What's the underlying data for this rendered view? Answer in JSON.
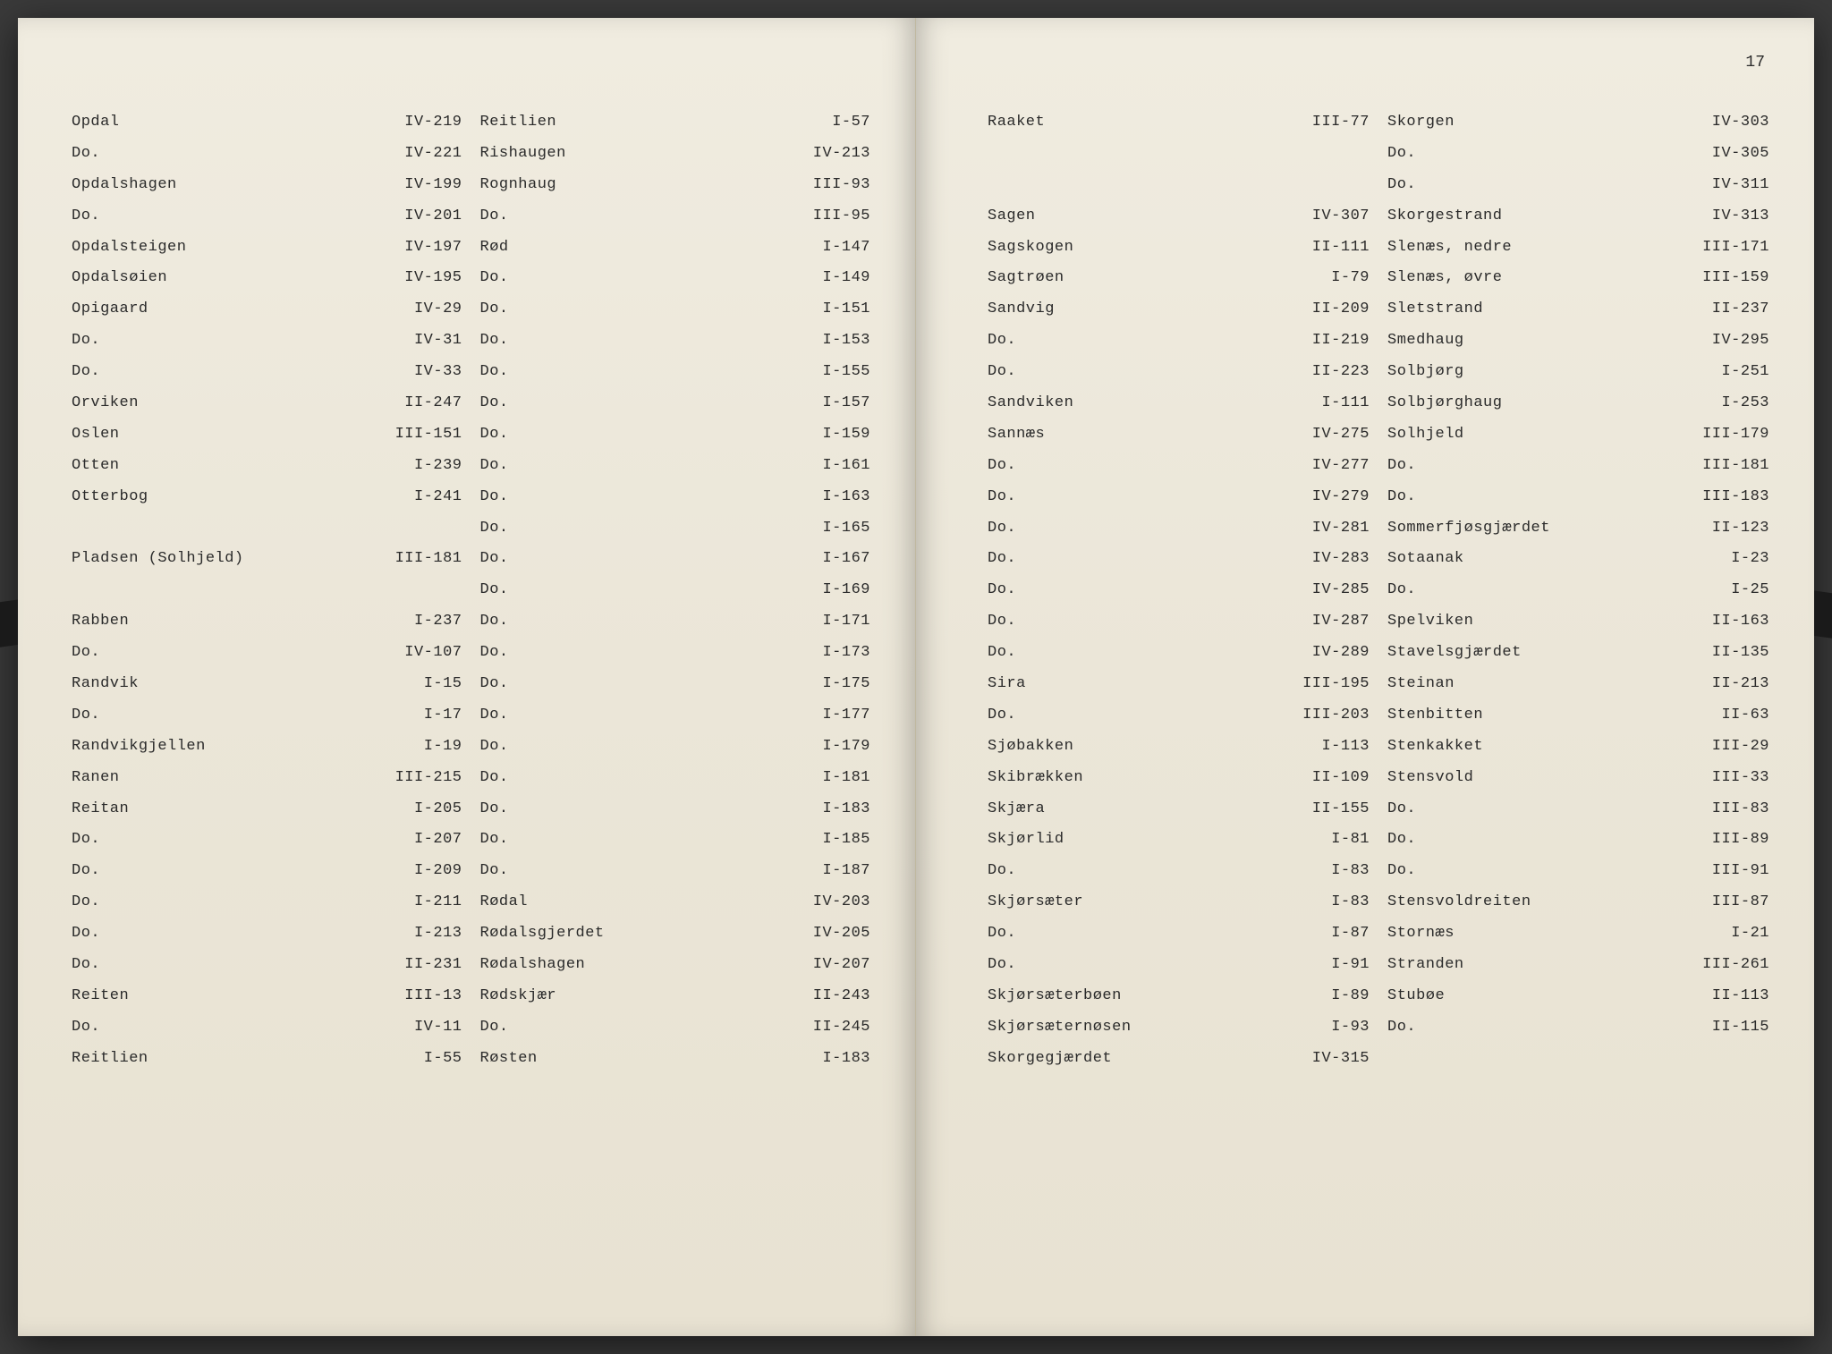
{
  "page_number": "17",
  "left_page": {
    "col1": [
      {
        "name": "Opdal",
        "ref": "IV-219"
      },
      {
        "name": "Do.",
        "ref": "IV-221"
      },
      {
        "name": "Opdalshagen",
        "ref": "IV-199"
      },
      {
        "name": "Do.",
        "ref": "IV-201"
      },
      {
        "name": "Opdalsteigen",
        "ref": "IV-197"
      },
      {
        "name": "Opdalsøien",
        "ref": "IV-195"
      },
      {
        "name": "Opigaard",
        "ref": "IV-29"
      },
      {
        "name": "Do.",
        "ref": "IV-31"
      },
      {
        "name": "Do.",
        "ref": "IV-33"
      },
      {
        "name": "Orviken",
        "ref": "II-247"
      },
      {
        "name": "Oslen",
        "ref": "III-151"
      },
      {
        "name": "Otten",
        "ref": "I-239"
      },
      {
        "name": "Otterbog",
        "ref": "I-241"
      },
      {
        "name": "",
        "ref": ""
      },
      {
        "name": "Pladsen (Solhjeld)",
        "ref": "III-181"
      },
      {
        "name": "",
        "ref": ""
      },
      {
        "name": "Rabben",
        "ref": "I-237"
      },
      {
        "name": "Do.",
        "ref": "IV-107"
      },
      {
        "name": "Randvik",
        "ref": "I-15"
      },
      {
        "name": "Do.",
        "ref": "I-17"
      },
      {
        "name": "Randvikgjellen",
        "ref": "I-19"
      },
      {
        "name": "Ranen",
        "ref": "III-215"
      },
      {
        "name": "Reitan",
        "ref": "I-205"
      },
      {
        "name": "Do.",
        "ref": "I-207"
      },
      {
        "name": "Do.",
        "ref": "I-209"
      },
      {
        "name": "Do.",
        "ref": "I-211"
      },
      {
        "name": "Do.",
        "ref": "I-213"
      },
      {
        "name": "Do.",
        "ref": "II-231"
      },
      {
        "name": "Reiten",
        "ref": "III-13"
      },
      {
        "name": "Do.",
        "ref": "IV-11"
      },
      {
        "name": "Reitlien",
        "ref": "I-55"
      }
    ],
    "col2": [
      {
        "name": "Reitlien",
        "ref": "I-57"
      },
      {
        "name": "Rishaugen",
        "ref": "IV-213"
      },
      {
        "name": "Rognhaug",
        "ref": "III-93"
      },
      {
        "name": "Do.",
        "ref": "III-95"
      },
      {
        "name": "Rød",
        "ref": "I-147"
      },
      {
        "name": "Do.",
        "ref": "I-149"
      },
      {
        "name": "Do.",
        "ref": "I-151"
      },
      {
        "name": "Do.",
        "ref": "I-153"
      },
      {
        "name": "Do.",
        "ref": "I-155"
      },
      {
        "name": "Do.",
        "ref": "I-157"
      },
      {
        "name": "Do.",
        "ref": "I-159"
      },
      {
        "name": "Do.",
        "ref": "I-161"
      },
      {
        "name": "Do.",
        "ref": "I-163"
      },
      {
        "name": "Do.",
        "ref": "I-165"
      },
      {
        "name": "Do.",
        "ref": "I-167"
      },
      {
        "name": "Do.",
        "ref": "I-169"
      },
      {
        "name": "Do.",
        "ref": "I-171"
      },
      {
        "name": "Do.",
        "ref": "I-173"
      },
      {
        "name": "Do.",
        "ref": "I-175"
      },
      {
        "name": "Do.",
        "ref": "I-177"
      },
      {
        "name": "Do.",
        "ref": "I-179"
      },
      {
        "name": "Do.",
        "ref": "I-181"
      },
      {
        "name": "Do.",
        "ref": "I-183"
      },
      {
        "name": "Do.",
        "ref": "I-185"
      },
      {
        "name": "Do.",
        "ref": "I-187"
      },
      {
        "name": "Rødal",
        "ref": "IV-203"
      },
      {
        "name": "Rødalsgjerdet",
        "ref": "IV-205"
      },
      {
        "name": "Rødalshagen",
        "ref": "IV-207"
      },
      {
        "name": "Rødskjær",
        "ref": "II-243"
      },
      {
        "name": "Do.",
        "ref": "II-245"
      },
      {
        "name": "Røsten",
        "ref": "I-183"
      }
    ]
  },
  "right_page": {
    "col1": [
      {
        "name": "Raaket",
        "ref": "III-77"
      },
      {
        "name": "",
        "ref": ""
      },
      {
        "name": "",
        "ref": ""
      },
      {
        "name": "Sagen",
        "ref": "IV-307"
      },
      {
        "name": "Sagskogen",
        "ref": "II-111"
      },
      {
        "name": "Sagtrøen",
        "ref": "I-79"
      },
      {
        "name": "Sandvig",
        "ref": "II-209"
      },
      {
        "name": "Do.",
        "ref": "II-219"
      },
      {
        "name": "Do.",
        "ref": "II-223"
      },
      {
        "name": "Sandviken",
        "ref": "I-111"
      },
      {
        "name": "Sannæs",
        "ref": "IV-275"
      },
      {
        "name": "Do.",
        "ref": "IV-277"
      },
      {
        "name": "Do.",
        "ref": "IV-279"
      },
      {
        "name": "Do.",
        "ref": "IV-281"
      },
      {
        "name": "Do.",
        "ref": "IV-283"
      },
      {
        "name": "Do.",
        "ref": "IV-285"
      },
      {
        "name": "Do.",
        "ref": "IV-287"
      },
      {
        "name": "Do.",
        "ref": "IV-289"
      },
      {
        "name": "Sira",
        "ref": "III-195"
      },
      {
        "name": "Do.",
        "ref": "III-203"
      },
      {
        "name": "Sjøbakken",
        "ref": "I-113"
      },
      {
        "name": "Skibrækken",
        "ref": "II-109"
      },
      {
        "name": "Skjæra",
        "ref": "II-155"
      },
      {
        "name": "Skjørlid",
        "ref": "I-81"
      },
      {
        "name": "Do.",
        "ref": "I-83"
      },
      {
        "name": "Skjørsæter",
        "ref": "I-83"
      },
      {
        "name": "Do.",
        "ref": "I-87"
      },
      {
        "name": "Do.",
        "ref": "I-91"
      },
      {
        "name": "Skjørsæterbøen",
        "ref": "I-89"
      },
      {
        "name": "Skjørsæternøsen",
        "ref": "I-93"
      },
      {
        "name": "Skorgegjærdet",
        "ref": "IV-315"
      }
    ],
    "col2": [
      {
        "name": "Skorgen",
        "ref": "IV-303"
      },
      {
        "name": "Do.",
        "ref": "IV-305"
      },
      {
        "name": "Do.",
        "ref": "IV-311"
      },
      {
        "name": "Skorgestrand",
        "ref": "IV-313"
      },
      {
        "name": "Slenæs, nedre",
        "ref": "III-171"
      },
      {
        "name": "Slenæs, øvre",
        "ref": "III-159"
      },
      {
        "name": "Sletstrand",
        "ref": "II-237"
      },
      {
        "name": "Smedhaug",
        "ref": "IV-295"
      },
      {
        "name": "Solbjørg",
        "ref": "I-251"
      },
      {
        "name": "Solbjørghaug",
        "ref": "I-253"
      },
      {
        "name": "Solhjeld",
        "ref": "III-179"
      },
      {
        "name": "Do.",
        "ref": "III-181"
      },
      {
        "name": "Do.",
        "ref": "III-183"
      },
      {
        "name": "Sommerfjøsgjærdet",
        "ref": "II-123"
      },
      {
        "name": "Sotaanak",
        "ref": "I-23"
      },
      {
        "name": "Do.",
        "ref": "I-25"
      },
      {
        "name": "Spelviken",
        "ref": "II-163"
      },
      {
        "name": "Stavelsgjærdet",
        "ref": "II-135"
      },
      {
        "name": "Steinan",
        "ref": "II-213"
      },
      {
        "name": "Stenbitten",
        "ref": "II-63"
      },
      {
        "name": "Stenkakket",
        "ref": "III-29"
      },
      {
        "name": "Stensvold",
        "ref": "III-33"
      },
      {
        "name": "Do.",
        "ref": "III-83"
      },
      {
        "name": "Do.",
        "ref": "III-89"
      },
      {
        "name": "Do.",
        "ref": "III-91"
      },
      {
        "name": "Stensvoldreiten",
        "ref": "III-87"
      },
      {
        "name": "Stornæs",
        "ref": "I-21"
      },
      {
        "name": "Stranden",
        "ref": "III-261"
      },
      {
        "name": "Stubøe",
        "ref": "II-113"
      },
      {
        "name": "Do.",
        "ref": "II-115"
      }
    ]
  }
}
